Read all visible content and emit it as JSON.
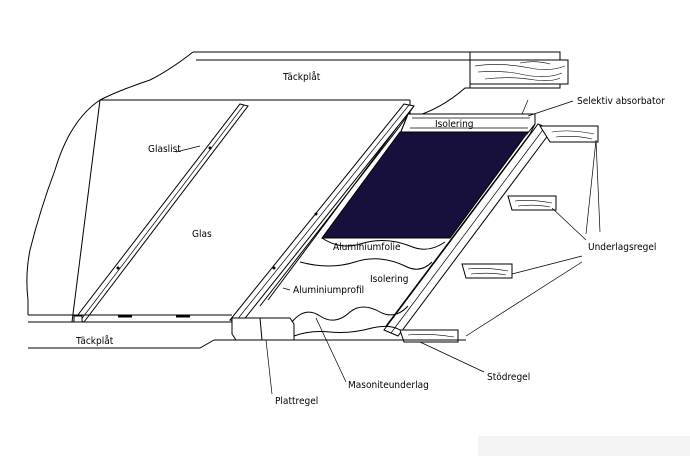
{
  "labels": {
    "tackplat_top": "Täckplåt",
    "tackplat_bottom": "Täckplåt",
    "selektiv_absorbator": "Selektiv absorbator",
    "isolering_top": "Isolering",
    "glaslist": "Glaslist",
    "glas": "Glas",
    "aluminiumfolie": "Aluminiumfolie",
    "isolering": "Isolering",
    "aluminiumprofil": "Aluminiumprofil",
    "underlagsregel": "Underlagsregel",
    "stodregel": "Stödregel",
    "masoniteunderlag": "Masoniteunderlag",
    "plattregel": "Plattregel"
  },
  "colors": {
    "line": "#000000",
    "absorber": "#18103c",
    "background": "#ffffff"
  }
}
